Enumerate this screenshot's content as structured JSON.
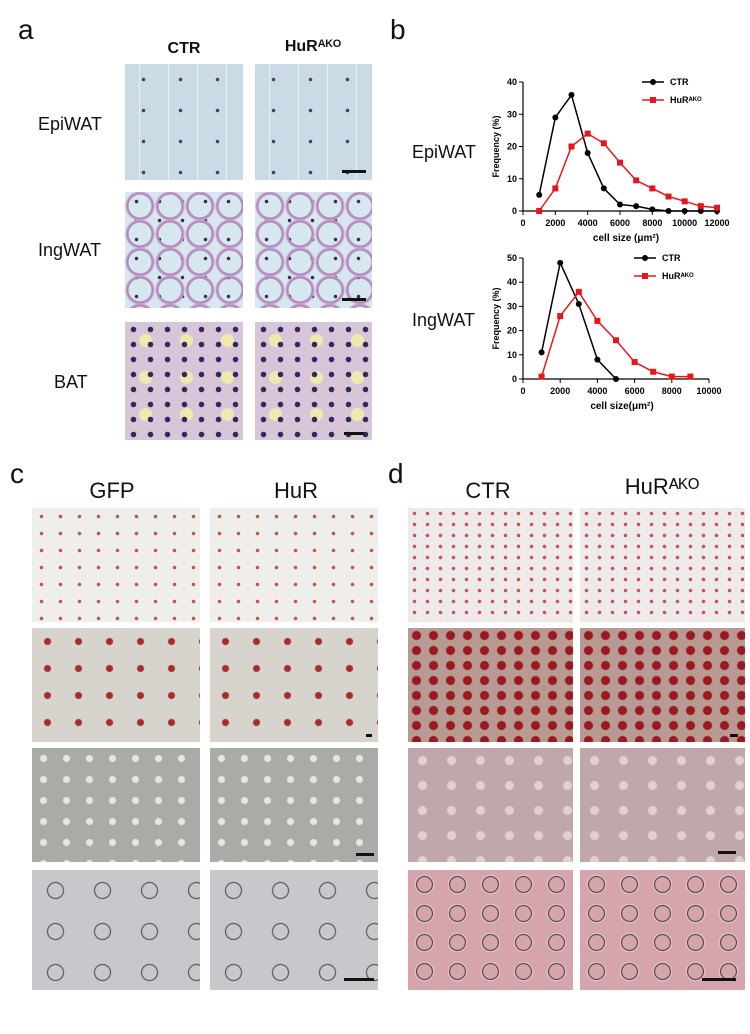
{
  "panel_a": {
    "label": "a",
    "columns": [
      "CTR",
      "HuRᴬᴷᴼ"
    ],
    "rows": [
      "EpiWAT",
      "IngWAT",
      "BAT"
    ]
  },
  "panel_b": {
    "label": "b",
    "rows": [
      "EpiWAT",
      "IngWAT"
    ]
  },
  "panel_c": {
    "label": "c",
    "columns": [
      "GFP",
      "HuR"
    ]
  },
  "panel_d": {
    "label": "d",
    "columns": [
      "CTR",
      "HuRᴬᴷᴼ"
    ]
  },
  "chart_data": [
    {
      "type": "line",
      "xlabel": "cell size (μm²)",
      "ylabel": "Frequency (%)",
      "x": [
        1000,
        2000,
        3000,
        4000,
        5000,
        6000,
        7000,
        8000,
        9000,
        10000,
        11000,
        12000
      ],
      "xlim": [
        0,
        12000
      ],
      "xticks": [
        0,
        2000,
        4000,
        6000,
        8000,
        10000,
        12000
      ],
      "ylim": [
        0,
        40
      ],
      "yticks": [
        0,
        10,
        20,
        30,
        40
      ],
      "legend": "top-right",
      "series": [
        {
          "name": "CTR",
          "color": "#000000",
          "marker": "circle",
          "values": [
            5,
            29,
            36,
            18,
            7,
            2,
            1.5,
            0.5,
            0,
            0,
            0,
            0
          ]
        },
        {
          "name": "HuRᴬᴷᴼ",
          "color": "#e8161b",
          "marker": "square",
          "values": [
            0,
            7,
            20,
            24,
            21,
            15,
            9.5,
            7,
            4.5,
            3,
            1.5,
            1
          ]
        }
      ]
    },
    {
      "type": "line",
      "xlabel": "cell size(μm²)",
      "ylabel": "Frequency (%)",
      "x": [
        1000,
        2000,
        3000,
        4000,
        5000,
        6000,
        7000,
        8000,
        9000
      ],
      "xlim": [
        0,
        10000
      ],
      "xticks": [
        0,
        2000,
        4000,
        6000,
        8000,
        10000
      ],
      "ylim": [
        0,
        50
      ],
      "yticks": [
        0,
        10,
        20,
        30,
        40,
        50
      ],
      "legend": "top-right",
      "series": [
        {
          "name": "CTR",
          "color": "#000000",
          "marker": "circle",
          "values": [
            11,
            48,
            31,
            8,
            0,
            null,
            null,
            null,
            null
          ]
        },
        {
          "name": "HuRᴬᴷᴼ",
          "color": "#e8161b",
          "marker": "square",
          "values": [
            1,
            26,
            36,
            24,
            16,
            7,
            3,
            1,
            1
          ]
        }
      ]
    }
  ]
}
